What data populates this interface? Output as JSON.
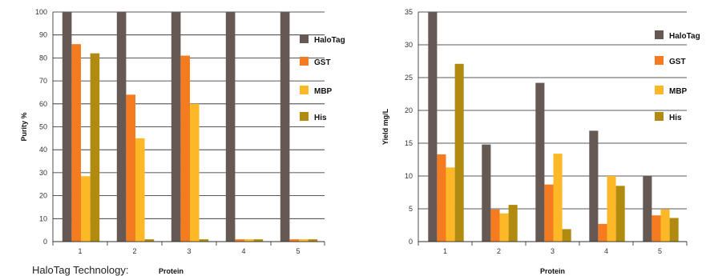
{
  "colors": {
    "HaloTag": "#665852",
    "GST": "#f47b20",
    "MBP": "#fdb827",
    "His": "#b08b0f"
  },
  "caption": "HaloTag Technology:",
  "chart_data": [
    {
      "type": "bar",
      "title": "",
      "xlabel": "Protein",
      "ylabel": "Purity %",
      "categories": [
        "1",
        "2",
        "3",
        "4",
        "5"
      ],
      "ylim": [
        0,
        100
      ],
      "yticks": [
        0,
        10,
        20,
        30,
        40,
        50,
        60,
        70,
        80,
        90,
        100
      ],
      "grid": true,
      "legend": "right",
      "series": [
        {
          "name": "HaloTag",
          "values": [
            100,
            100,
            100,
            100,
            100
          ]
        },
        {
          "name": "GST",
          "values": [
            86,
            64,
            81,
            1,
            1
          ]
        },
        {
          "name": "MBP",
          "values": [
            28.5,
            45,
            60,
            1,
            1
          ]
        },
        {
          "name": "His",
          "values": [
            82,
            1,
            1,
            1,
            1
          ]
        }
      ]
    },
    {
      "type": "bar",
      "title": "",
      "xlabel": "Protein",
      "ylabel": "Yield mg/L",
      "categories": [
        "1",
        "2",
        "3",
        "4",
        "5"
      ],
      "ylim": [
        0,
        35
      ],
      "yticks": [
        0,
        5,
        10,
        15,
        20,
        25,
        30,
        35
      ],
      "grid": true,
      "legend": "right",
      "series": [
        {
          "name": "HaloTag",
          "values": [
            35,
            14.8,
            24.2,
            16.9,
            10
          ]
        },
        {
          "name": "GST",
          "values": [
            13.3,
            4.9,
            8.7,
            2.7,
            4
          ]
        },
        {
          "name": "MBP",
          "values": [
            11.3,
            4.3,
            13.4,
            10,
            4.9
          ]
        },
        {
          "name": "His",
          "values": [
            27.1,
            5.6,
            1.9,
            8.5,
            3.6
          ]
        }
      ]
    }
  ]
}
